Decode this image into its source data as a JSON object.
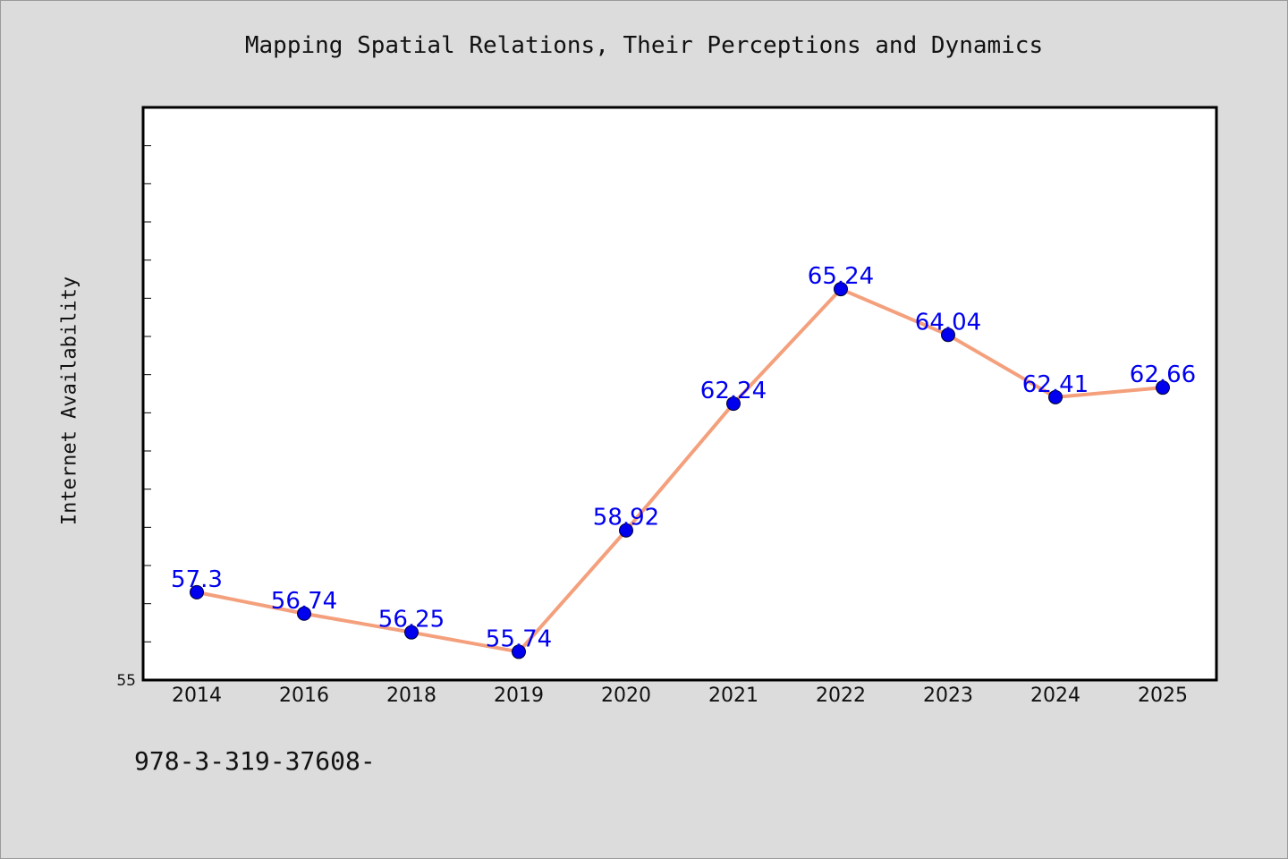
{
  "title": "Mapping Spatial Relations, Their Perceptions and Dynamics",
  "footnote": "978-3-319-37608-",
  "colors": {
    "background": "#dcdcdc",
    "plot_background": "#ffffff",
    "line": "#f4a07c",
    "marker": "#0000ee",
    "data_label": "#0000ee"
  },
  "chart_data": {
    "type": "line",
    "title": "Mapping Spatial Relations, Their Perceptions and Dynamics",
    "xlabel": "",
    "ylabel": "Internet Availability",
    "categories": [
      "2014",
      "2016",
      "2018",
      "2019",
      "2020",
      "2021",
      "2022",
      "2023",
      "2024",
      "2025"
    ],
    "series": [
      {
        "values": [
          57.3,
          56.74,
          56.25,
          55.74,
          58.92,
          62.24,
          65.24,
          64.04,
          62.41,
          62.66
        ],
        "labels": [
          "57.3",
          "56.74",
          "56.25",
          "55.74",
          "58.92",
          "62.24",
          "65.24",
          "64.04",
          "62.41",
          "62.66"
        ]
      }
    ],
    "ylim": [
      55,
      70
    ],
    "yticks_labeled": [
      "55"
    ],
    "grid": false,
    "legend": "none"
  }
}
